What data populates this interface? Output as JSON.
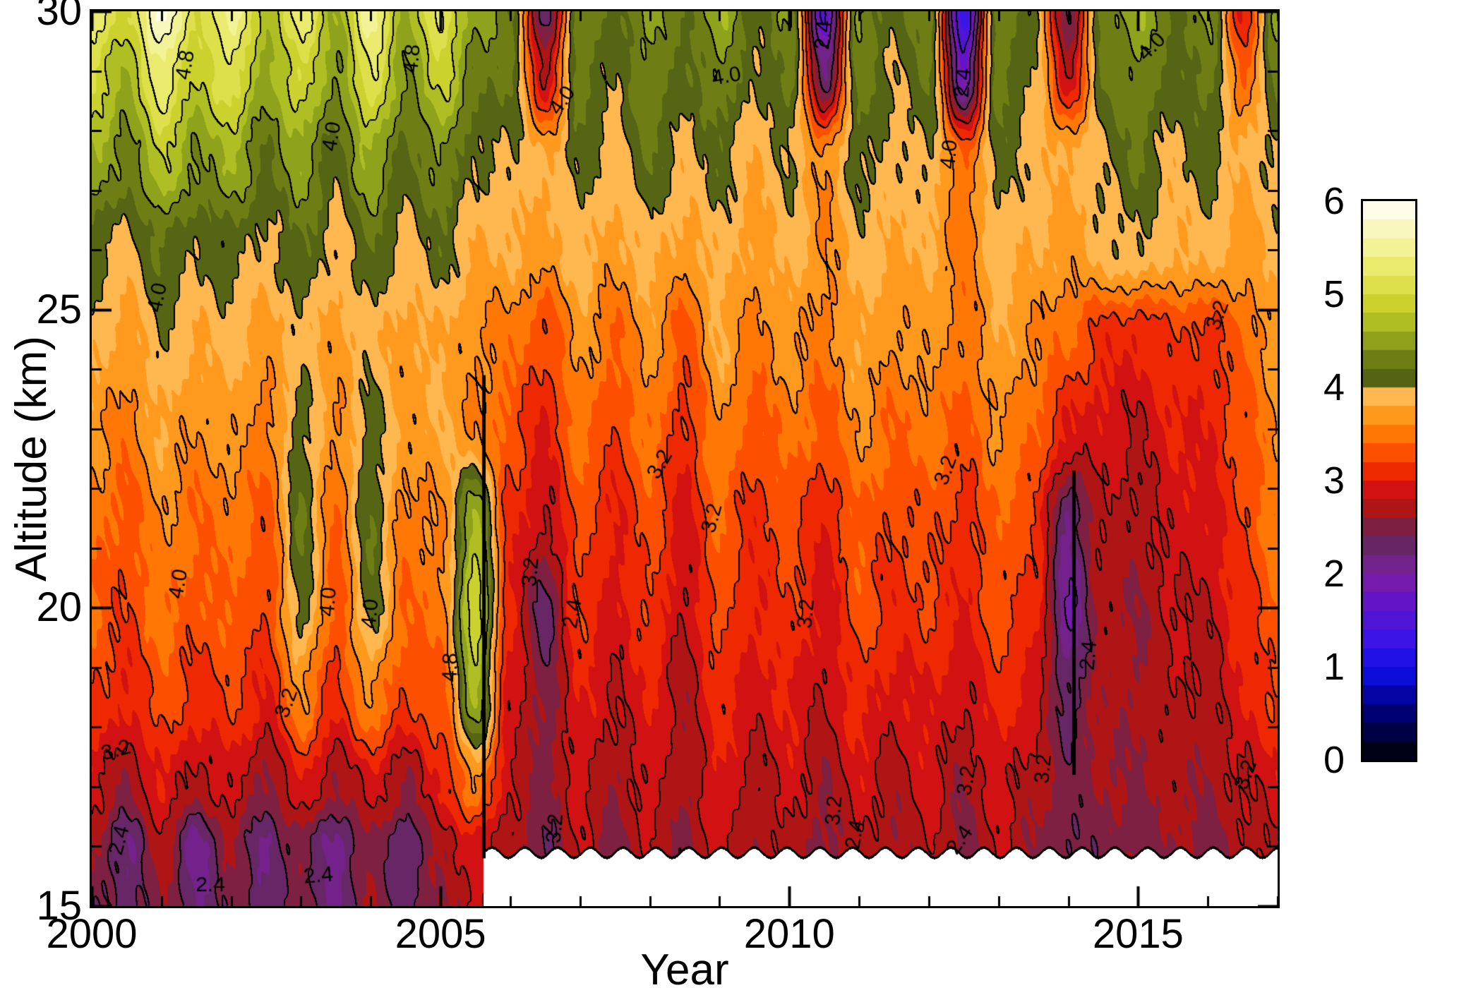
{
  "chart_data": {
    "type": "heatmap",
    "title": "",
    "xlabel": "Year",
    "ylabel": "Altitude (km)",
    "x_axis": {
      "label": "Year",
      "range": [
        2000,
        2017
      ],
      "major_ticks": [
        2000,
        2005,
        2010,
        2015
      ],
      "minor_step": 1
    },
    "y_axis": {
      "label": "Altitude (km)",
      "range": [
        15,
        30
      ],
      "major_ticks": [
        15,
        20,
        25,
        30
      ],
      "minor_step": 1
    },
    "colorbar": {
      "range": [
        0,
        6
      ],
      "ticks": [
        0,
        1,
        2,
        3,
        4,
        5,
        6
      ]
    },
    "band_interval": 0.2,
    "line_interval": 0.4,
    "line_base": 2.0,
    "x": [
      2000.0,
      2000.5,
      2001.0,
      2001.5,
      2002.0,
      2002.5,
      2003.0,
      2003.5,
      2004.0,
      2004.5,
      2005.0,
      2005.5,
      2006.0,
      2006.5,
      2007.0,
      2007.5,
      2008.0,
      2008.5,
      2009.0,
      2009.5,
      2010.0,
      2010.5,
      2011.0,
      2011.5,
      2012.0,
      2012.5,
      2013.0,
      2013.5,
      2014.0,
      2014.5,
      2015.0,
      2015.5,
      2016.0,
      2016.5,
      2017.0
    ],
    "altitudes": [
      15,
      16,
      17,
      18.5,
      20,
      21.5,
      23,
      24.5,
      26,
      27.5,
      29,
      30
    ],
    "values": [
      [
        2.5,
        2.3,
        2.6,
        2.2,
        2.5,
        2.3,
        2.5,
        2.2,
        2.6,
        2.3,
        2.6,
        2.8,
        2.7,
        2.6,
        2.7,
        2.6,
        2.7,
        2.6,
        2.7,
        2.6,
        2.7,
        2.6,
        2.7,
        2.6,
        2.7,
        2.6,
        2.7,
        2.6,
        2.7,
        2.6,
        2.7,
        2.6,
        2.7,
        2.6,
        2.7
      ],
      [
        2.6,
        2.2,
        2.7,
        2.1,
        2.6,
        2.2,
        2.5,
        2.1,
        2.6,
        2.2,
        2.7,
        2.9,
        2.7,
        2.4,
        2.8,
        2.5,
        2.8,
        2.5,
        2.9,
        2.6,
        2.8,
        2.5,
        2.8,
        2.6,
        2.8,
        2.5,
        2.8,
        2.6,
        2.4,
        2.5,
        2.5,
        2.6,
        2.5,
        2.7,
        2.8
      ],
      [
        2.9,
        2.6,
        3.0,
        2.7,
        2.9,
        2.5,
        3.0,
        2.6,
        2.9,
        2.6,
        3.0,
        3.6,
        2.8,
        2.5,
        2.9,
        2.6,
        2.9,
        2.6,
        3.0,
        2.7,
        2.9,
        2.6,
        2.9,
        2.7,
        2.9,
        2.6,
        2.9,
        2.7,
        2.5,
        2.6,
        2.6,
        2.7,
        2.6,
        2.8,
        2.9
      ],
      [
        3.2,
        3.0,
        3.3,
        3.1,
        3.2,
        3.0,
        3.6,
        3.1,
        3.6,
        3.2,
        3.3,
        4.6,
        2.9,
        2.5,
        3.0,
        2.8,
        3.0,
        2.7,
        3.1,
        2.9,
        3.0,
        2.8,
        3.1,
        2.9,
        3.0,
        2.8,
        3.1,
        2.9,
        2.3,
        2.7,
        2.6,
        2.8,
        2.7,
        3.0,
        3.2
      ],
      [
        3.4,
        3.2,
        3.5,
        3.3,
        3.4,
        3.2,
        4.1,
        3.3,
        4.1,
        3.4,
        3.5,
        5.0,
        3.0,
        2.3,
        3.2,
        2.9,
        3.2,
        2.8,
        3.3,
        3.0,
        3.2,
        2.9,
        3.3,
        3.1,
        3.2,
        3.0,
        3.3,
        3.1,
        2.0,
        2.7,
        2.6,
        2.8,
        2.8,
        3.1,
        3.4
      ],
      [
        3.5,
        3.3,
        3.6,
        3.4,
        3.5,
        3.3,
        4.2,
        3.4,
        4.2,
        3.5,
        3.6,
        4.6,
        3.1,
        2.8,
        3.3,
        3.0,
        3.3,
        2.9,
        3.4,
        3.1,
        3.3,
        3.0,
        3.4,
        3.2,
        3.3,
        3.1,
        3.4,
        3.2,
        2.2,
        2.8,
        2.7,
        2.9,
        2.9,
        3.2,
        3.5
      ],
      [
        3.7,
        3.5,
        3.8,
        3.6,
        3.7,
        3.5,
        4.1,
        3.6,
        4.1,
        3.7,
        3.8,
        3.6,
        3.3,
        3.0,
        3.5,
        3.2,
        3.5,
        3.1,
        3.6,
        3.3,
        3.5,
        3.3,
        3.6,
        3.4,
        3.5,
        3.3,
        3.6,
        3.4,
        3.0,
        2.9,
        2.8,
        3.0,
        3.0,
        3.3,
        3.6
      ],
      [
        3.9,
        3.7,
        4.0,
        3.8,
        3.9,
        3.7,
        3.9,
        3.7,
        3.9,
        3.7,
        3.8,
        3.6,
        3.5,
        3.2,
        3.7,
        3.4,
        3.7,
        3.3,
        3.8,
        3.5,
        3.7,
        3.5,
        3.8,
        3.6,
        3.7,
        3.5,
        3.8,
        3.6,
        3.4,
        3.1,
        3.0,
        3.2,
        3.1,
        3.4,
        3.7
      ],
      [
        4.1,
        3.9,
        4.2,
        4.0,
        4.1,
        3.9,
        4.2,
        3.9,
        4.2,
        3.9,
        4.1,
        3.8,
        3.8,
        3.7,
        3.9,
        3.7,
        3.9,
        3.7,
        3.9,
        3.7,
        3.9,
        3.6,
        3.9,
        3.8,
        3.8,
        3.5,
        3.9,
        3.8,
        3.7,
        3.9,
        4.0,
        3.8,
        3.9,
        3.7,
        3.9
      ],
      [
        4.6,
        4.3,
        4.8,
        4.4,
        4.6,
        4.2,
        4.5,
        4.1,
        4.6,
        4.1,
        4.4,
        4.0,
        4.0,
        3.8,
        4.1,
        3.9,
        4.2,
        3.9,
        4.1,
        3.8,
        4.0,
        3.6,
        4.1,
        3.9,
        4.0,
        3.4,
        4.1,
        3.9,
        3.8,
        4.0,
        4.2,
        3.9,
        4.1,
        3.8,
        4.0
      ],
      [
        5.0,
        4.6,
        5.4,
        4.8,
        5.2,
        4.5,
        5.0,
        4.4,
        5.2,
        4.4,
        4.9,
        4.3,
        4.2,
        2.8,
        4.3,
        4.0,
        4.4,
        4.1,
        4.4,
        4.0,
        4.3,
        2.2,
        4.3,
        4.0,
        4.2,
        1.8,
        4.3,
        4.0,
        2.8,
        4.2,
        4.4,
        4.1,
        4.3,
        3.4,
        4.3
      ],
      [
        5.4,
        4.9,
        5.9,
        5.0,
        5.5,
        4.7,
        5.3,
        4.6,
        5.5,
        4.6,
        5.2,
        4.5,
        4.3,
        2.2,
        4.4,
        4.1,
        4.5,
        4.2,
        4.6,
        4.1,
        4.4,
        1.6,
        4.4,
        4.1,
        4.3,
        1.2,
        4.4,
        4.0,
        2.4,
        4.3,
        4.6,
        4.2,
        4.4,
        3.0,
        4.4
      ]
    ],
    "colormap_stops": [
      [
        0.0,
        "#000000"
      ],
      [
        0.55,
        "#000080"
      ],
      [
        0.95,
        "#0f0fe6"
      ],
      [
        1.3,
        "#3c14e6"
      ],
      [
        1.7,
        "#6414c8"
      ],
      [
        2.0,
        "#7d1ea0"
      ],
      [
        2.25,
        "#64286e"
      ],
      [
        2.45,
        "#6e2350"
      ],
      [
        2.65,
        "#a81616"
      ],
      [
        2.9,
        "#d21212"
      ],
      [
        3.1,
        "#ee2800"
      ],
      [
        3.35,
        "#ff5a00"
      ],
      [
        3.6,
        "#ff8c0a"
      ],
      [
        3.85,
        "#ffae3c"
      ],
      [
        3.99,
        "#ffc873"
      ],
      [
        4.01,
        "#4b5a14"
      ],
      [
        4.3,
        "#6e7d14"
      ],
      [
        4.6,
        "#a0b41e"
      ],
      [
        4.9,
        "#ccd22d"
      ],
      [
        5.2,
        "#e6e65a"
      ],
      [
        5.5,
        "#f2f296"
      ],
      [
        5.8,
        "#fafad2"
      ],
      [
        6.0,
        "#ffffff"
      ]
    ],
    "mask": {
      "x_start": 2005.62,
      "base_alt": 15.78,
      "amp": 0.17,
      "period": 0.47
    },
    "dividers": [
      {
        "x": 2005.62,
        "alt_from": 15.8,
        "alt_to": 23.9
      },
      {
        "x": 2014.08,
        "alt_from": 17.2,
        "alt_to": 22.3
      }
    ],
    "contour_labels": [
      {
        "text": "4.8",
        "x": 2001.35,
        "y": 29.1,
        "rot": -80
      },
      {
        "text": "4.8",
        "x": 2004.6,
        "y": 29.2,
        "rot": -85
      },
      {
        "text": "4.0",
        "x": 2003.45,
        "y": 27.9,
        "rot": -80
      },
      {
        "text": "4.0",
        "x": 2000.95,
        "y": 25.2,
        "rot": -78
      },
      {
        "text": "4.0",
        "x": 2006.75,
        "y": 28.5,
        "rot": -55
      },
      {
        "text": "4.0",
        "x": 2009.1,
        "y": 28.9,
        "rot": -10
      },
      {
        "text": "4.0",
        "x": 2012.3,
        "y": 27.6,
        "rot": -85
      },
      {
        "text": "2.4",
        "x": 2010.5,
        "y": 29.6,
        "rot": -85
      },
      {
        "text": "2.4",
        "x": 2012.5,
        "y": 28.8,
        "rot": -85
      },
      {
        "text": "4.0",
        "x": 2015.2,
        "y": 29.4,
        "rot": -45
      },
      {
        "text": "3.2",
        "x": 2016.15,
        "y": 24.9,
        "rot": -70
      },
      {
        "text": "4.0",
        "x": 2001.25,
        "y": 20.4,
        "rot": -80
      },
      {
        "text": "4.0",
        "x": 2003.4,
        "y": 20.1,
        "rot": -85
      },
      {
        "text": "4.0",
        "x": 2004.0,
        "y": 19.9,
        "rot": -85
      },
      {
        "text": "4.8",
        "x": 2005.15,
        "y": 19.0,
        "rot": -88
      },
      {
        "text": "3.2",
        "x": 2002.8,
        "y": 18.4,
        "rot": -70
      },
      {
        "text": "3.2",
        "x": 2000.35,
        "y": 17.6,
        "rot": -15
      },
      {
        "text": "2.4",
        "x": 2000.4,
        "y": 16.1,
        "rot": -75
      },
      {
        "text": "2.4",
        "x": 2001.7,
        "y": 15.35,
        "rot": 0
      },
      {
        "text": "2.4",
        "x": 2003.25,
        "y": 15.5,
        "rot": -5
      },
      {
        "text": "3.2",
        "x": 2006.3,
        "y": 20.6,
        "rot": -85
      },
      {
        "text": "2.4",
        "x": 2006.9,
        "y": 19.9,
        "rot": -80
      },
      {
        "text": "3.2",
        "x": 2006.65,
        "y": 16.3,
        "rot": -85
      },
      {
        "text": "3.2",
        "x": 2008.15,
        "y": 22.4,
        "rot": -60
      },
      {
        "text": "3.2",
        "x": 2008.9,
        "y": 21.5,
        "rot": -75
      },
      {
        "text": "3.2",
        "x": 2010.25,
        "y": 19.9,
        "rot": -85
      },
      {
        "text": "3.2",
        "x": 2010.65,
        "y": 16.6,
        "rot": -85
      },
      {
        "text": "2.4",
        "x": 2010.95,
        "y": 16.2,
        "rot": -80
      },
      {
        "text": "3.2",
        "x": 2012.25,
        "y": 22.3,
        "rot": -70
      },
      {
        "text": "3.2",
        "x": 2012.55,
        "y": 17.1,
        "rot": -80
      },
      {
        "text": "2.4",
        "x": 2012.45,
        "y": 16.1,
        "rot": -55
      },
      {
        "text": "3.2",
        "x": 2013.65,
        "y": 17.3,
        "rot": -85
      },
      {
        "text": "2.4",
        "x": 2014.3,
        "y": 19.2,
        "rot": -85
      },
      {
        "text": "3.2",
        "x": 2016.55,
        "y": 17.2,
        "rot": -70
      }
    ]
  }
}
